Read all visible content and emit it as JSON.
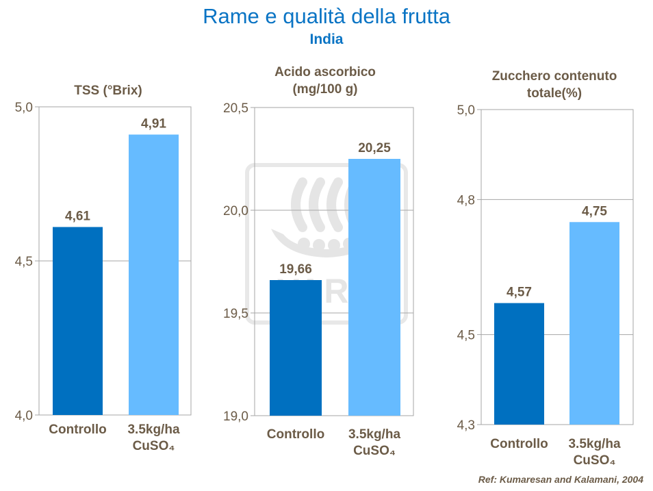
{
  "page": {
    "title": "Rame e qualità della frutta",
    "subtitle": "India",
    "reference": "Ref: Kumaresan and Kalamani, 2004",
    "watermark_text": "YARA"
  },
  "colors": {
    "title": "#0a74c4",
    "text": "#6b5b47",
    "controllo_bar": "#0070c0",
    "treated_bar": "#66bbff",
    "gridline": "#a6a6a6"
  },
  "chart_data": [
    {
      "type": "bar",
      "title_lines": [
        "TSS (°Brix)"
      ],
      "categories": [
        [
          "Controllo"
        ],
        [
          "3.5kg/ha",
          "CuSO₄"
        ]
      ],
      "values": [
        4.61,
        4.91
      ],
      "value_labels": [
        "4,61",
        "4,91"
      ],
      "ylim": [
        4.0,
        5.0
      ],
      "yticks": [
        4.0,
        4.5,
        5.0
      ],
      "ytick_labels": [
        "4,0",
        "4,5",
        "5,0"
      ],
      "grid": true
    },
    {
      "type": "bar",
      "title_lines": [
        "Acido ascorbico",
        "(mg/100 g)"
      ],
      "categories": [
        [
          "Controllo"
        ],
        [
          "3.5kg/ha",
          "CuSO₄"
        ]
      ],
      "values": [
        19.66,
        20.25
      ],
      "value_labels": [
        "19,66",
        "20,25"
      ],
      "ylim": [
        19.0,
        20.5
      ],
      "yticks": [
        19.0,
        19.5,
        20.0,
        20.5
      ],
      "ytick_labels": [
        "19,0",
        "19,5",
        "20,0",
        "20,5"
      ],
      "grid": true
    },
    {
      "type": "bar",
      "title_lines": [
        "Zucchero contenuto",
        "totale(%)"
      ],
      "categories": [
        [
          "Controllo"
        ],
        [
          "3.5kg/ha",
          "CuSO₄"
        ]
      ],
      "values": [
        4.57,
        4.75
      ],
      "value_labels": [
        "4,57",
        "4,75"
      ],
      "ylim": [
        4.3,
        5.0
      ],
      "yticks": [
        4.3,
        4.5,
        4.8,
        5.0
      ],
      "ytick_labels": [
        "4,3",
        "4,5",
        "4,8",
        "5,0"
      ],
      "grid": true
    }
  ]
}
